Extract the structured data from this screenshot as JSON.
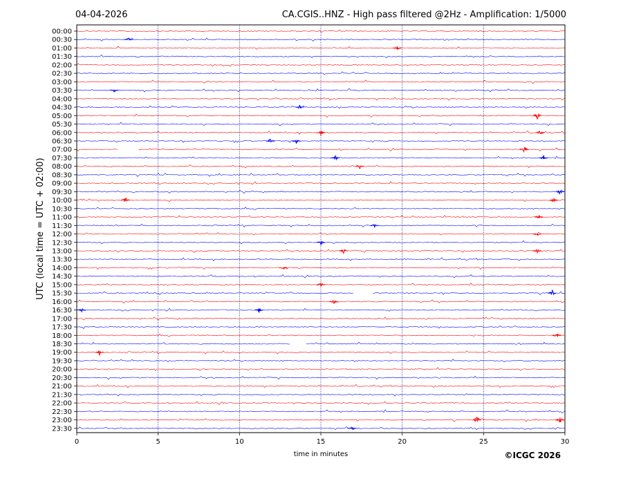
{
  "chart_data": {
    "type": "line",
    "date": "04-04-2026",
    "title": "CA.CGIS..HNZ - High pass filtered @2Hz - Amplification: 1/5000",
    "xlabel": "time in minutes",
    "ylabel": "UTC (local time = UTC + 02:00)",
    "xlim": [
      0,
      30
    ],
    "x_ticks": [
      "0",
      "5",
      "10",
      "15",
      "20",
      "25",
      "30"
    ],
    "grid": "vertical dotted lines at 5-minute intervals",
    "row_colors": [
      "#ff0000",
      "#0000ff"
    ],
    "rows": [
      "00:00",
      "00:30",
      "01:00",
      "01:30",
      "02:00",
      "02:30",
      "03:00",
      "03:30",
      "04:00",
      "04:30",
      "05:00",
      "05:30",
      "06:00",
      "06:30",
      "07:00",
      "07:30",
      "08:00",
      "08:30",
      "09:00",
      "09:30",
      "10:00",
      "10:30",
      "11:00",
      "11:30",
      "12:00",
      "12:30",
      "13:00",
      "13:30",
      "14:00",
      "14:30",
      "15:00",
      "15:30",
      "16:00",
      "16:30",
      "17:00",
      "17:30",
      "18:00",
      "18:30",
      "19:00",
      "19:30",
      "20:00",
      "20:30",
      "21:00",
      "21:30",
      "22:00",
      "22:30",
      "23:00",
      "23:30"
    ],
    "events": [
      {
        "row": "00:30",
        "minute": 3.2,
        "amplitude": 2
      },
      {
        "row": "01:00",
        "minute": 19.7,
        "amplitude": 3
      },
      {
        "row": "03:30",
        "minute": 2.3,
        "amplitude": 3
      },
      {
        "row": "04:30",
        "minute": 13.7,
        "amplitude": 4
      },
      {
        "row": "05:00",
        "minute": 28.3,
        "amplitude": 6
      },
      {
        "row": "06:00",
        "minute": 15.0,
        "amplitude": 4
      },
      {
        "row": "06:00",
        "minute": 28.5,
        "amplitude": 4
      },
      {
        "row": "06:30",
        "minute": 11.9,
        "amplitude": 4
      },
      {
        "row": "06:30",
        "minute": 13.5,
        "amplitude": 4
      },
      {
        "row": "07:00",
        "minute": 27.5,
        "amplitude": 6
      },
      {
        "row": "07:30",
        "minute": 15.9,
        "amplitude": 4
      },
      {
        "row": "07:30",
        "minute": 28.7,
        "amplitude": 4
      },
      {
        "row": "08:00",
        "minute": 17.4,
        "amplitude": 4
      },
      {
        "row": "09:30",
        "minute": 29.7,
        "amplitude": 6
      },
      {
        "row": "10:00",
        "minute": 3.0,
        "amplitude": 6
      },
      {
        "row": "10:00",
        "minute": 29.3,
        "amplitude": 4
      },
      {
        "row": "11:00",
        "minute": 28.4,
        "amplitude": 4
      },
      {
        "row": "11:30",
        "minute": 18.3,
        "amplitude": 3
      },
      {
        "row": "12:00",
        "minute": 28.3,
        "amplitude": 4
      },
      {
        "row": "12:30",
        "minute": 15.0,
        "amplitude": 4
      },
      {
        "row": "13:00",
        "minute": 16.4,
        "amplitude": 4
      },
      {
        "row": "13:00",
        "minute": 28.3,
        "amplitude": 4
      },
      {
        "row": "14:00",
        "minute": 12.7,
        "amplitude": 3
      },
      {
        "row": "15:00",
        "minute": 15.0,
        "amplitude": 4
      },
      {
        "row": "15:30",
        "minute": 29.2,
        "amplitude": 6
      },
      {
        "row": "16:00",
        "minute": 15.8,
        "amplitude": 4
      },
      {
        "row": "16:30",
        "minute": 0.3,
        "amplitude": 4
      },
      {
        "row": "16:30",
        "minute": 11.2,
        "amplitude": 4
      },
      {
        "row": "18:00",
        "minute": 29.5,
        "amplitude": 4
      },
      {
        "row": "19:00",
        "minute": 1.4,
        "amplitude": 5
      },
      {
        "row": "23:00",
        "minute": 24.6,
        "amplitude": 7
      },
      {
        "row": "23:00",
        "minute": 29.7,
        "amplitude": 6
      },
      {
        "row": "23:30",
        "minute": 16.9,
        "amplitude": 3
      }
    ],
    "gaps": [
      {
        "row": "07:00",
        "from": 2.5,
        "to": 3.8
      },
      {
        "row": "15:30",
        "from": 17.0,
        "to": 18.2
      },
      {
        "row": "18:30",
        "from": 13.1,
        "to": 14.1
      }
    ]
  },
  "copyright": "©ICGC 2026"
}
